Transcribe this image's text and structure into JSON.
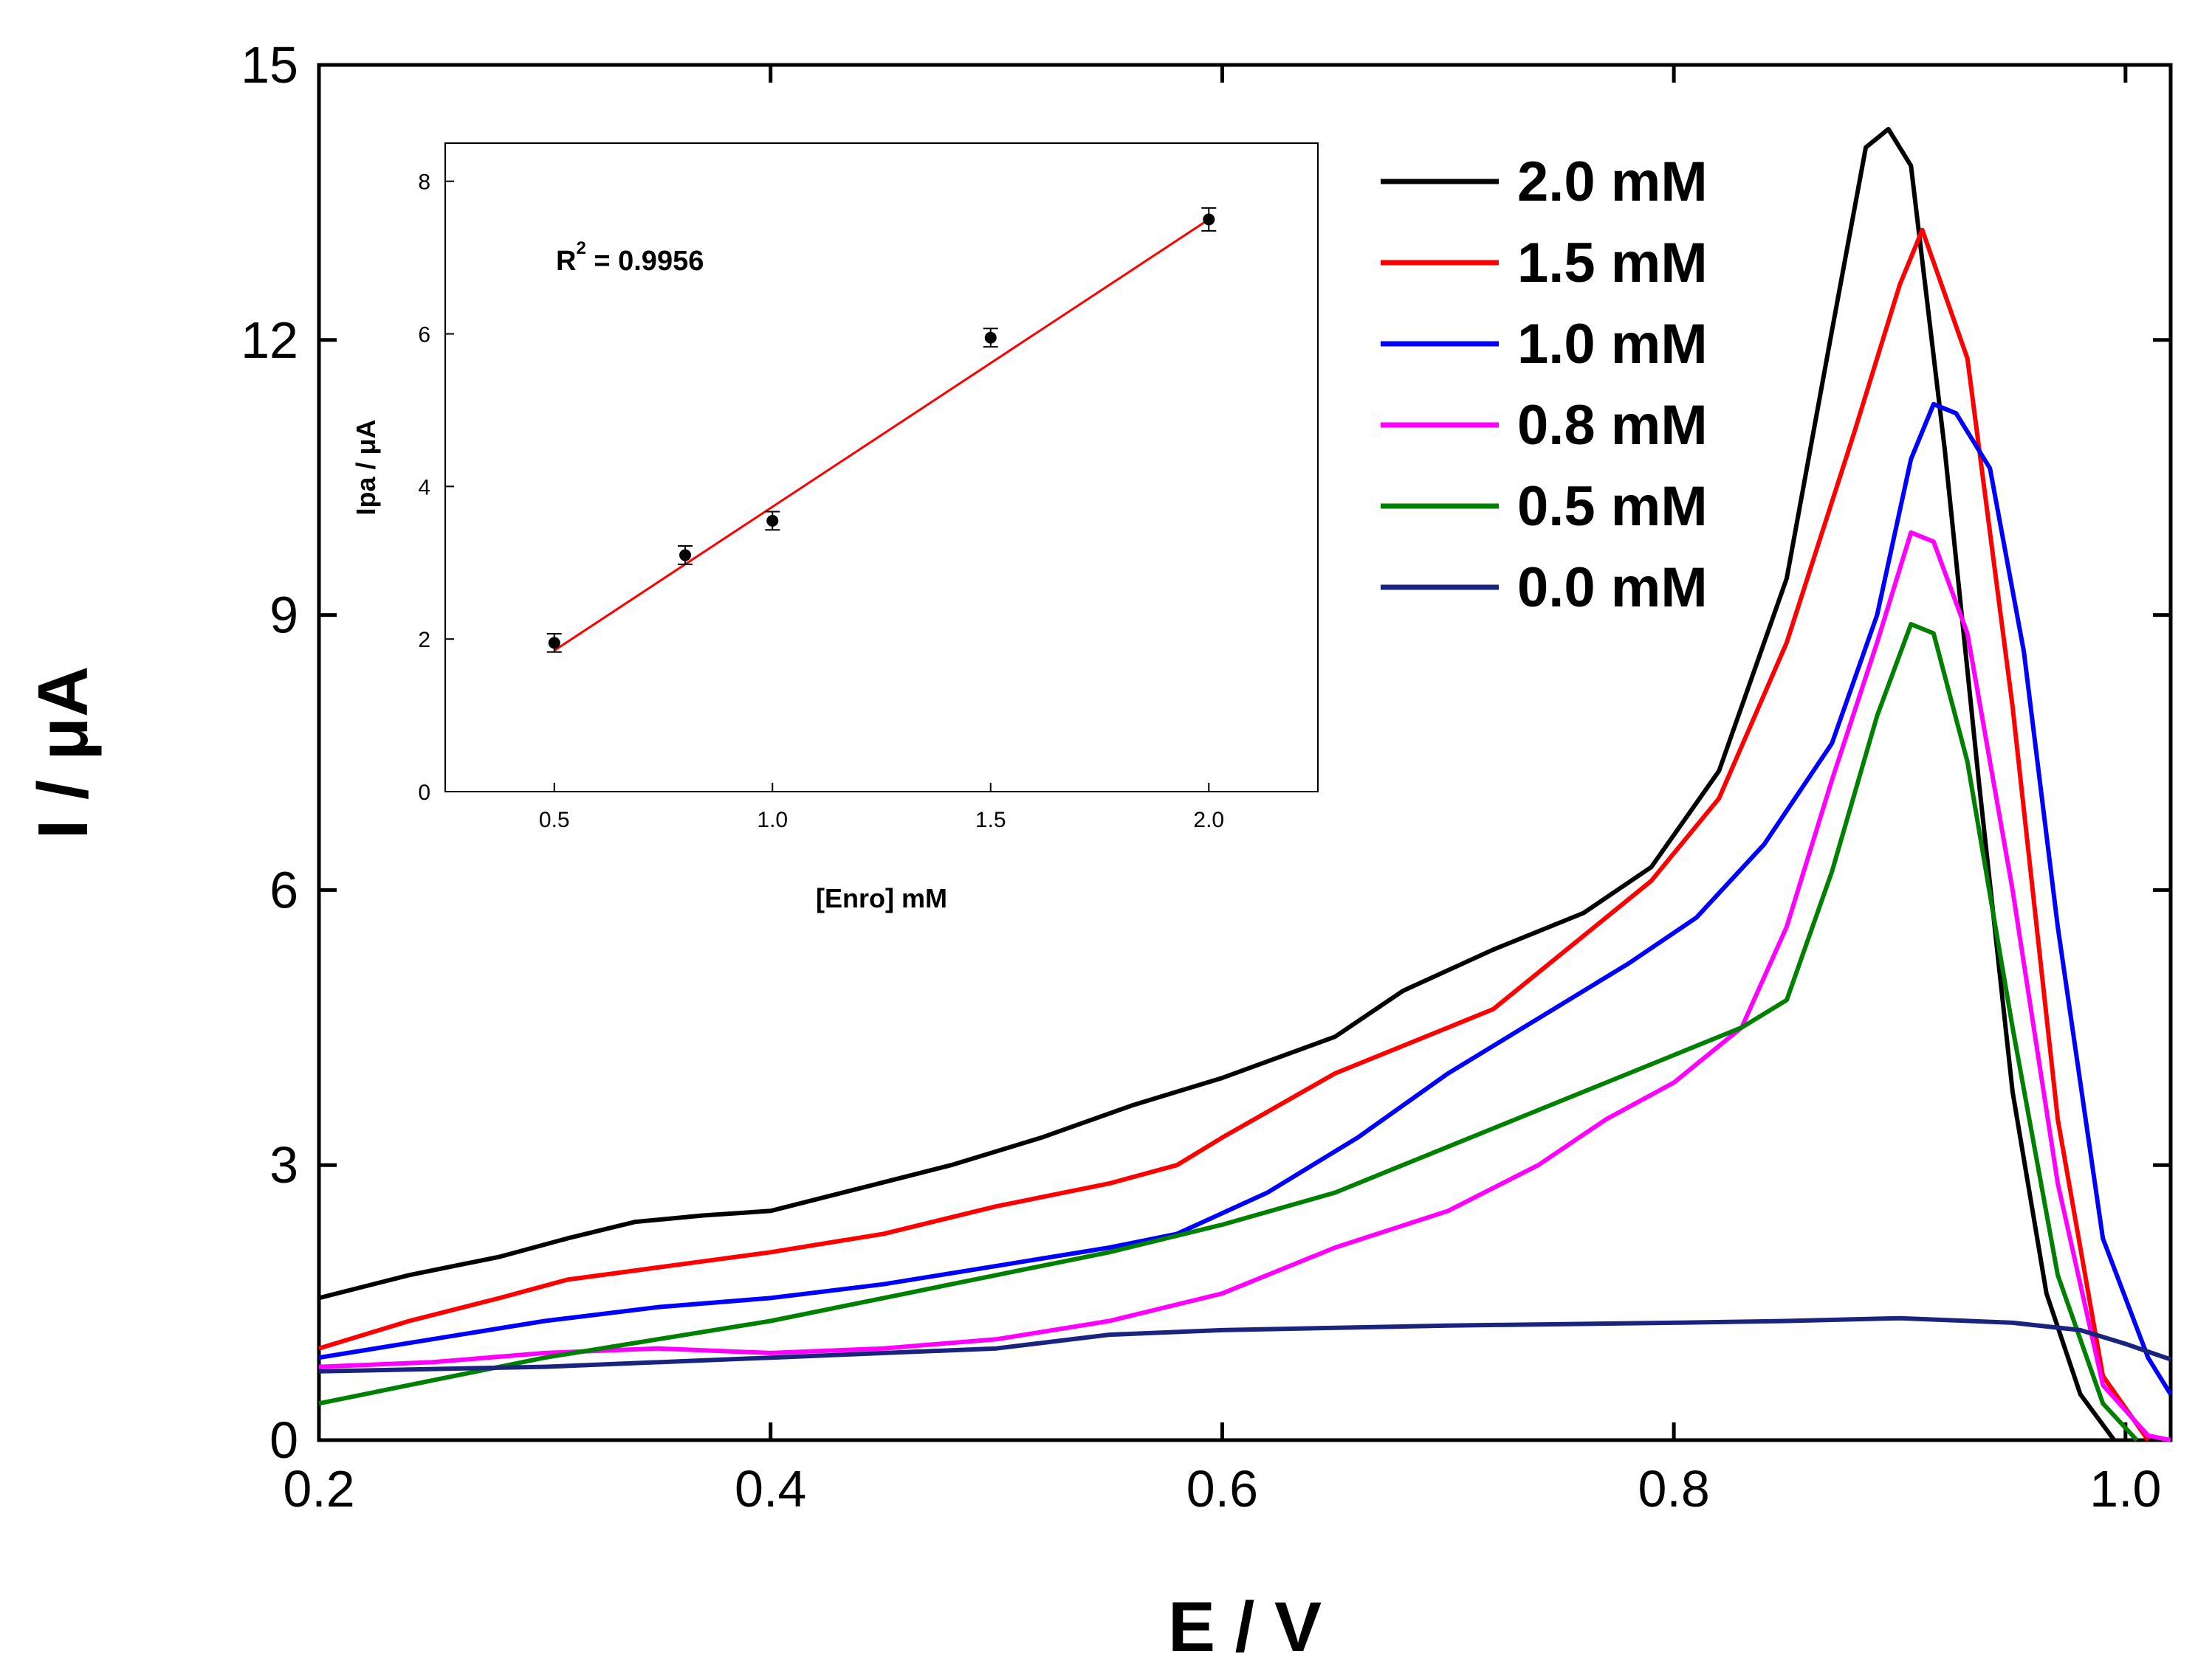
{
  "chart_data": [
    {
      "type": "line",
      "title": "",
      "xlabel": "E / V",
      "ylabel": "I / μA",
      "xlim": [
        0.2,
        1.02
      ],
      "ylim": [
        0,
        15
      ],
      "xticks": [
        0.2,
        0.4,
        0.6,
        0.8,
        1.0
      ],
      "xtick_labels": [
        "0.2",
        "0.4",
        "0.6",
        "0.8",
        "1.0"
      ],
      "yticks": [
        0,
        3,
        6,
        9,
        12,
        15
      ],
      "ytick_labels": [
        "0",
        "3",
        "6",
        "9",
        "12",
        "15"
      ],
      "grid": false,
      "legend_position": "top-right",
      "series": [
        {
          "name": "2.0 mM",
          "color": "#000000",
          "x": [
            0.2,
            0.24,
            0.28,
            0.31,
            0.34,
            0.37,
            0.4,
            0.44,
            0.48,
            0.52,
            0.56,
            0.6,
            0.65,
            0.68,
            0.72,
            0.76,
            0.79,
            0.82,
            0.85,
            0.87,
            0.885,
            0.895,
            0.905,
            0.92,
            0.935,
            0.95,
            0.965,
            0.98,
            0.995
          ],
          "y": [
            1.55,
            1.8,
            2.0,
            2.2,
            2.38,
            2.45,
            2.5,
            2.75,
            3.0,
            3.3,
            3.65,
            3.95,
            4.4,
            4.9,
            5.35,
            5.75,
            6.25,
            7.3,
            9.4,
            12.1,
            14.1,
            14.3,
            13.9,
            10.8,
            7.2,
            3.8,
            1.6,
            0.5,
            0.0
          ]
        },
        {
          "name": "1.5 mM",
          "color": "#ff0000",
          "x": [
            0.2,
            0.24,
            0.28,
            0.31,
            0.34,
            0.37,
            0.4,
            0.45,
            0.5,
            0.55,
            0.58,
            0.6,
            0.65,
            0.7,
            0.72,
            0.76,
            0.79,
            0.82,
            0.85,
            0.88,
            0.9,
            0.91,
            0.93,
            0.95,
            0.97,
            0.99,
            1.01
          ],
          "y": [
            1.0,
            1.3,
            1.55,
            1.75,
            1.85,
            1.95,
            2.05,
            2.25,
            2.55,
            2.8,
            3.0,
            3.3,
            4.0,
            4.5,
            4.7,
            5.5,
            6.1,
            7.0,
            8.7,
            11.0,
            12.6,
            13.2,
            11.8,
            8.0,
            3.5,
            0.7,
            0.0
          ]
        },
        {
          "name": "1.0 mM",
          "color": "#0000ff",
          "x": [
            0.2,
            0.25,
            0.3,
            0.35,
            0.4,
            0.45,
            0.5,
            0.55,
            0.58,
            0.62,
            0.66,
            0.7,
            0.74,
            0.78,
            0.81,
            0.84,
            0.87,
            0.89,
            0.905,
            0.915,
            0.925,
            0.94,
            0.955,
            0.97,
            0.99,
            1.01,
            1.02
          ],
          "y": [
            0.9,
            1.1,
            1.3,
            1.45,
            1.55,
            1.7,
            1.9,
            2.1,
            2.25,
            2.7,
            3.3,
            4.0,
            4.6,
            5.2,
            5.7,
            6.5,
            7.6,
            9.0,
            10.7,
            11.3,
            11.2,
            10.6,
            8.6,
            5.6,
            2.2,
            0.9,
            0.5
          ]
        },
        {
          "name": "0.8 mM",
          "color": "#ff00ff",
          "x": [
            0.2,
            0.25,
            0.3,
            0.35,
            0.4,
            0.45,
            0.5,
            0.55,
            0.6,
            0.65,
            0.7,
            0.74,
            0.77,
            0.8,
            0.83,
            0.85,
            0.87,
            0.89,
            0.905,
            0.915,
            0.93,
            0.95,
            0.97,
            0.99,
            1.01,
            1.02
          ],
          "y": [
            0.8,
            0.85,
            0.95,
            1.0,
            0.95,
            1.0,
            1.1,
            1.3,
            1.6,
            2.1,
            2.5,
            3.0,
            3.5,
            3.9,
            4.5,
            5.6,
            7.2,
            8.7,
            9.9,
            9.8,
            8.8,
            6.0,
            2.8,
            0.6,
            0.05,
            0.0
          ]
        },
        {
          "name": "0.5 mM",
          "color": "#008000",
          "x": [
            0.2,
            0.25,
            0.3,
            0.35,
            0.4,
            0.45,
            0.5,
            0.55,
            0.6,
            0.65,
            0.7,
            0.74,
            0.77,
            0.8,
            0.83,
            0.85,
            0.87,
            0.89,
            0.905,
            0.915,
            0.93,
            0.95,
            0.97,
            0.99,
            1.005
          ],
          "y": [
            0.4,
            0.65,
            0.9,
            1.1,
            1.3,
            1.55,
            1.8,
            2.05,
            2.35,
            2.7,
            3.2,
            3.6,
            3.9,
            4.2,
            4.5,
            4.8,
            6.2,
            7.9,
            8.9,
            8.8,
            7.4,
            4.5,
            1.8,
            0.4,
            0.0
          ]
        },
        {
          "name": "0.0 mM",
          "color": "#1a237e",
          "x": [
            0.2,
            0.3,
            0.4,
            0.5,
            0.55,
            0.6,
            0.7,
            0.8,
            0.85,
            0.9,
            0.95,
            0.98,
            1.0,
            1.02
          ],
          "y": [
            0.75,
            0.8,
            0.9,
            1.0,
            1.15,
            1.2,
            1.25,
            1.28,
            1.3,
            1.33,
            1.28,
            1.2,
            1.05,
            0.88
          ]
        }
      ]
    },
    {
      "type": "scatter",
      "title": "",
      "xlabel": "[Enro] mM",
      "ylabel": "Ipa / μA",
      "xlim": [
        0.25,
        2.25
      ],
      "ylim": [
        0,
        8.5
      ],
      "xticks": [
        0.5,
        1.0,
        1.5,
        2.0
      ],
      "xtick_labels": [
        "0.5",
        "1.0",
        "1.5",
        "2.0"
      ],
      "yticks": [
        0,
        2,
        4,
        6,
        8
      ],
      "ytick_labels": [
        "0",
        "2",
        "4",
        "6",
        "8"
      ],
      "grid": false,
      "annotation_main": "R",
      "annotation_sup": "2",
      "annotation_rest": " = 0.9956",
      "points": {
        "x": [
          0.5,
          0.8,
          1.0,
          1.5,
          2.0
        ],
        "y": [
          1.95,
          3.1,
          3.55,
          5.95,
          7.5
        ],
        "error": [
          0.12,
          0.12,
          0.12,
          0.12,
          0.15
        ]
      },
      "fit_line": {
        "x": [
          0.5,
          2.0
        ],
        "y": [
          1.85,
          7.5
        ],
        "color": "#ff0000"
      }
    }
  ]
}
